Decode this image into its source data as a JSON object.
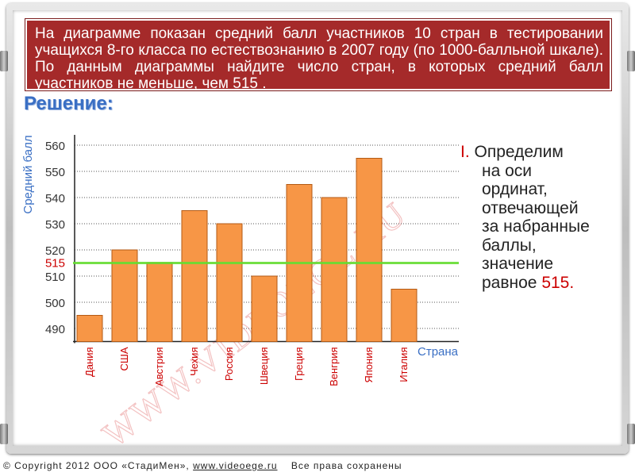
{
  "task_text": "На диаграмме показан средний балл участников 10 стран в тестировании учащихся 8-го класса по естествознанию в 2007 году (по 1000-балльной шкале).  По данным диаграммы найдите число стран, в которых средний балл участников не меньше, чем 515 .",
  "solution_title": "Решение:",
  "explanation": {
    "step_number": "I.",
    "lines": [
      "Определим",
      "на оси",
      "ординат,",
      "отвечающей",
      "за набранные",
      "баллы,",
      "значение"
    ],
    "last_line_prefix": "равное",
    "value": "515."
  },
  "footer": {
    "copyright": "© Copyright 2012 ООО «СтадиМен»,",
    "site": "www.videoege.ru",
    "rights": "Все права сохранены"
  },
  "watermark": "WWW.VIDEOEGE.RU",
  "colors": {
    "bar_fill": "#f79646",
    "bar_stroke": "#b35a14",
    "highlight_line": "#66dd33",
    "highlight_label": "#cc0000",
    "axis_label": "#3a6fc4",
    "task_bg": "#a52a2a"
  },
  "chart_data": {
    "type": "bar",
    "ylabel": "Средний балл",
    "xlabel": "Страна",
    "categories": [
      "Дания",
      "США",
      "Австрия",
      "Чехия",
      "Россия",
      "Швеция",
      "Греция",
      "Венгрия",
      "Япония",
      "Италия"
    ],
    "values": [
      495,
      520,
      515,
      535,
      530,
      510,
      545,
      540,
      555,
      505
    ],
    "ylim": [
      485,
      565
    ],
    "yticks": [
      490,
      500,
      510,
      520,
      530,
      540,
      550,
      560
    ],
    "highlight": {
      "value": 515,
      "label": "515"
    },
    "grid": "dotted horizontal"
  }
}
